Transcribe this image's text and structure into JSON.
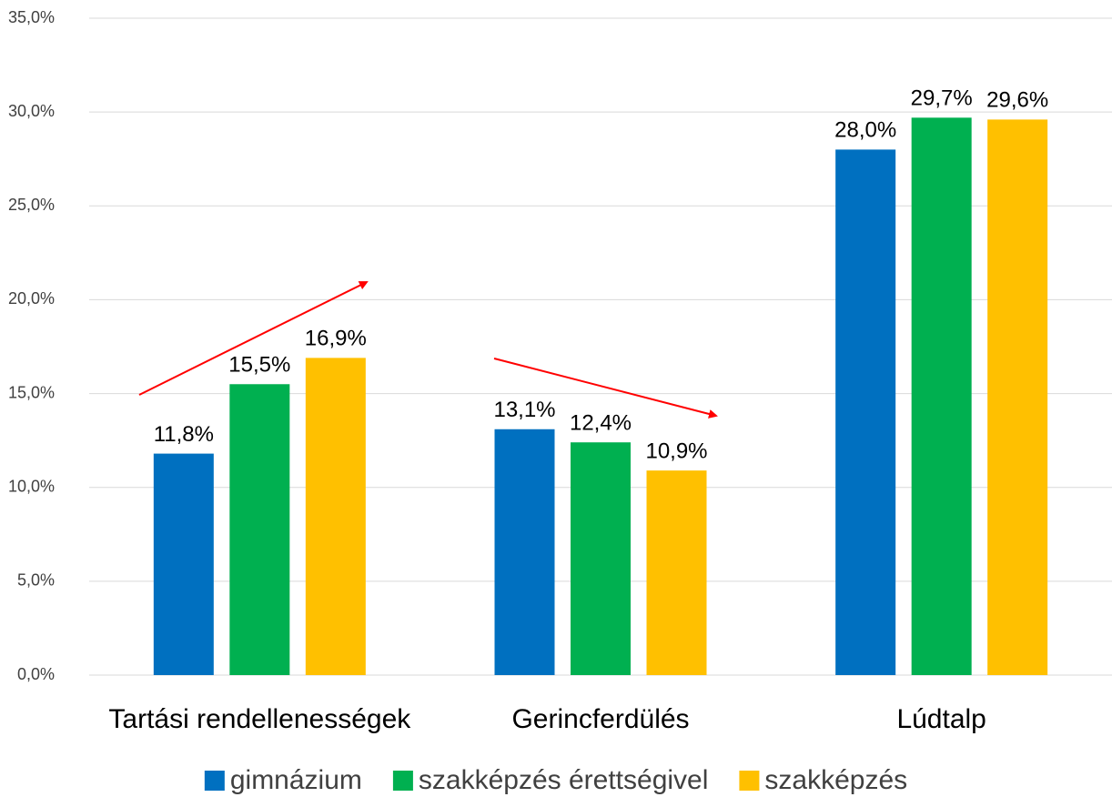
{
  "chart_data": {
    "type": "bar",
    "categories": [
      "Tartási rendellenességek",
      "Gerincferdülés",
      "Lúdtalp"
    ],
    "series": [
      {
        "name": "gimnázium",
        "color": "#0070c0",
        "values": [
          11.8,
          13.1,
          28.0
        ],
        "value_labels": [
          "11,8%",
          "13,1%",
          "28,0%"
        ]
      },
      {
        "name": "szakképzés érettségivel",
        "color": "#00b050",
        "values": [
          15.5,
          12.4,
          29.7
        ],
        "value_labels": [
          "15,5%",
          "12,4%",
          "29,7%"
        ]
      },
      {
        "name": "szakképzés",
        "color": "#ffc000",
        "values": [
          16.9,
          10.9,
          29.6
        ],
        "value_labels": [
          "16,9%",
          "10,9%",
          "29,6%"
        ]
      }
    ],
    "ylim": [
      0,
      35
    ],
    "yticks": [
      {
        "value": 0,
        "label": "0,0%"
      },
      {
        "value": 5,
        "label": "5,0%"
      },
      {
        "value": 10,
        "label": "10,0%"
      },
      {
        "value": 15,
        "label": "15,0%"
      },
      {
        "value": 20,
        "label": "20,0%"
      },
      {
        "value": 25,
        "label": "25,0%"
      },
      {
        "value": 30,
        "label": "30,0%"
      },
      {
        "value": 35,
        "label": "35,0%"
      }
    ],
    "grid": true,
    "legend": "bottom"
  }
}
